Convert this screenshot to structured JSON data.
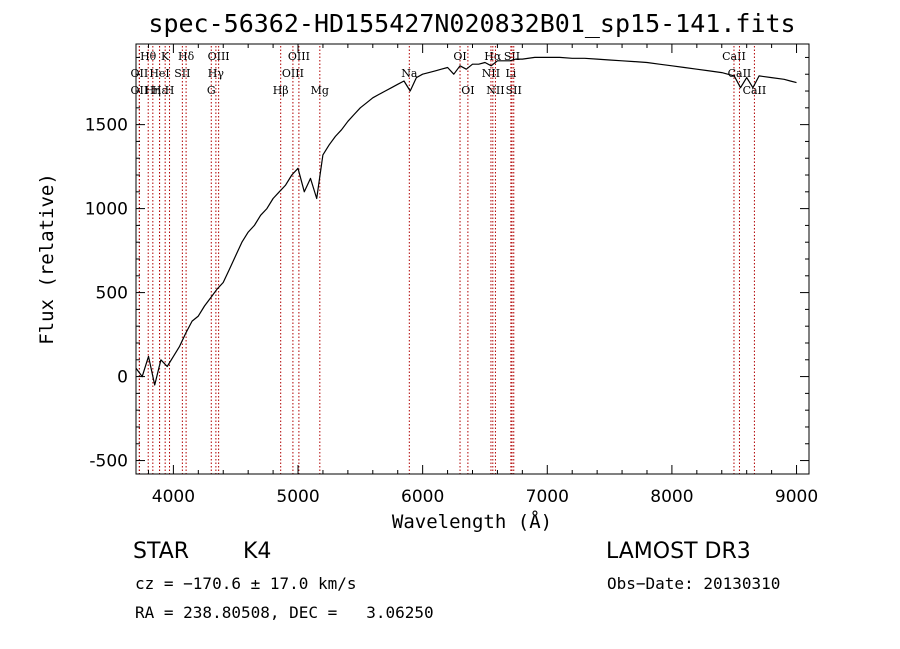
{
  "chart_data": {
    "type": "line",
    "title": "spec-56362-HD155427N020832B01_sp15-141.fits",
    "xlabel": "Wavelength (Å)",
    "ylabel": "Flux (relative)",
    "xlim": [
      3700,
      9100
    ],
    "ylim": [
      -580,
      1980
    ],
    "x_ticks": [
      4000,
      5000,
      6000,
      7000,
      8000,
      9000
    ],
    "y_ticks": [
      -500,
      0,
      500,
      1000,
      1500
    ],
    "grid": false,
    "series": [
      {
        "x": [
          3700,
          3750,
          3800,
          3850,
          3900,
          3950,
          4000,
          4050,
          4100,
          4150,
          4200,
          4250,
          4300,
          4350,
          4400,
          4450,
          4500,
          4550,
          4600,
          4650,
          4700,
          4750,
          4800,
          4850,
          4900,
          4950,
          5000,
          5050,
          5100,
          5150,
          5200,
          5250,
          5300,
          5350,
          5400,
          5450,
          5500,
          5550,
          5600,
          5650,
          5700,
          5750,
          5800,
          5850,
          5900,
          5950,
          6000,
          6050,
          6100,
          6150,
          6200,
          6250,
          6300,
          6350,
          6400,
          6450,
          6500,
          6550,
          6600,
          6650,
          6700,
          6750,
          6800,
          6900,
          7000,
          7100,
          7200,
          7300,
          7400,
          7500,
          7600,
          7700,
          7800,
          7900,
          8000,
          8100,
          8200,
          8300,
          8400,
          8500,
          8550,
          8600,
          8650,
          8700,
          8800,
          8900,
          8950,
          9000
        ],
        "y": [
          50,
          0,
          120,
          -50,
          100,
          60,
          120,
          180,
          260,
          330,
          360,
          420,
          470,
          520,
          560,
          640,
          720,
          800,
          860,
          900,
          960,
          1000,
          1060,
          1100,
          1140,
          1200,
          1240,
          1100,
          1180,
          1060,
          1320,
          1380,
          1430,
          1470,
          1520,
          1560,
          1600,
          1630,
          1660,
          1680,
          1700,
          1720,
          1740,
          1760,
          1700,
          1780,
          1800,
          1810,
          1820,
          1830,
          1840,
          1800,
          1850,
          1830,
          1860,
          1860,
          1870,
          1850,
          1880,
          1880,
          1880,
          1890,
          1890,
          1900,
          1900,
          1900,
          1895,
          1895,
          1890,
          1885,
          1880,
          1875,
          1870,
          1860,
          1850,
          1840,
          1830,
          1820,
          1810,
          1790,
          1720,
          1780,
          1720,
          1790,
          1780,
          1770,
          1760,
          1750
        ]
      }
    ],
    "lines": [
      {
        "name": "Hθ",
        "x": 3798,
        "row": 1
      },
      {
        "name": "OII",
        "x": 3727,
        "row": 2
      },
      {
        "name": "OII",
        "x": 3727,
        "row": 3
      },
      {
        "name": "Hε",
        "x": 3889,
        "row": 3
      },
      {
        "name": "K",
        "x": 3934,
        "row": 1
      },
      {
        "name": "HeI",
        "x": 3889,
        "row": 2
      },
      {
        "name": "Hη",
        "x": 3835,
        "row": 3
      },
      {
        "name": "H",
        "x": 3969,
        "row": 3
      },
      {
        "name": "Hδ",
        "x": 4102,
        "row": 1
      },
      {
        "name": "SII",
        "x": 4072,
        "row": 2
      },
      {
        "name": "OIII",
        "x": 4363,
        "row": 1
      },
      {
        "name": "Hγ",
        "x": 4341,
        "row": 2
      },
      {
        "name": "G",
        "x": 4304,
        "row": 3
      },
      {
        "name": "Hβ",
        "x": 4861,
        "row": 3
      },
      {
        "name": "OIII",
        "x": 5007,
        "row": 1
      },
      {
        "name": "OIII",
        "x": 4959,
        "row": 2
      },
      {
        "name": "Mg",
        "x": 5175,
        "row": 3
      },
      {
        "name": "Na",
        "x": 5893,
        "row": 2
      },
      {
        "name": "OI",
        "x": 6300,
        "row": 1
      },
      {
        "name": "OI",
        "x": 6363,
        "row": 3
      },
      {
        "name": "Hα",
        "x": 6563,
        "row": 1
      },
      {
        "name": "NII",
        "x": 6548,
        "row": 2
      },
      {
        "name": "NII",
        "x": 6584,
        "row": 3
      },
      {
        "name": "SII",
        "x": 6717,
        "row": 1
      },
      {
        "name": "Li",
        "x": 6708,
        "row": 2
      },
      {
        "name": "SII",
        "x": 6731,
        "row": 3
      },
      {
        "name": "CaII",
        "x": 8498,
        "row": 1
      },
      {
        "name": "CaII",
        "x": 8542,
        "row": 2
      },
      {
        "name": "CaII",
        "x": 8662,
        "row": 3
      }
    ],
    "line_color": "#b00000"
  },
  "info": {
    "class": "STAR",
    "subclass": "K4",
    "survey": "LAMOST DR3",
    "cz": "cz = −170.6 ± 17.0 km/s",
    "obs_date": "Obs−Date: 20130310",
    "radec": "RA = 238.80508, DEC =   3.06250"
  }
}
